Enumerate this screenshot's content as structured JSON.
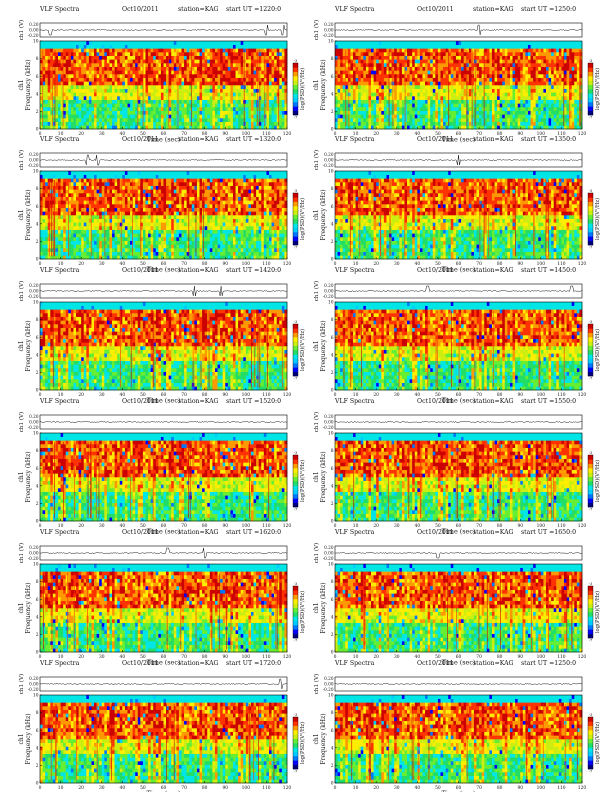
{
  "layout": {
    "columns": 2,
    "rows": 6
  },
  "colors": {
    "background": "#ffffff",
    "axis": "#000000",
    "colormap": [
      "#00007f",
      "#0000ff",
      "#0077ff",
      "#00ccff",
      "#00e6e6",
      "#22dd66",
      "#66ee33",
      "#ccee11",
      "#ffee00",
      "#ff9900",
      "#ff3300",
      "#cc0000"
    ]
  },
  "chart_data": [
    {
      "type": "heatmap",
      "panel": 1,
      "title": "VLF Spectra",
      "date": "Oct10/2011",
      "station": "station=KAG",
      "start": "start  UT  =1220:0",
      "ch_label": "ch1 (V)",
      "ch_ticks": [
        "0.20",
        "0.00",
        "-0.20"
      ],
      "ch_range": [
        -0.2,
        0.2
      ],
      "ylabel": "Frequency (kHz)",
      "channel": "ch1",
      "ylim": [
        0,
        10
      ],
      "y_ticks": [
        "0",
        "2",
        "4",
        "6",
        "8",
        "10"
      ],
      "xlabel": "Time (sec)",
      "xlim": [
        0,
        120
      ],
      "x_ticks": [
        "0",
        "10",
        "20",
        "30",
        "40",
        "50",
        "60",
        "70",
        "80",
        "90",
        "100",
        "110",
        "120"
      ],
      "colorbar_label": "log(PSD)(V²/Hz)",
      "colorbar_range": [
        -7,
        -3
      ],
      "colorbar_ticks": [
        "-3",
        "-7"
      ],
      "strong_emission_band_khz": [
        5,
        9
      ],
      "spikes_sec": [
        5,
        110,
        118
      ]
    },
    {
      "type": "heatmap",
      "panel": 2,
      "title": "VLF Spectra",
      "date": "Oct10/2011",
      "station": "station=KAG",
      "start": "start  UT  =1250:0",
      "ch_label": "ch1 (V)",
      "ch_ticks": [
        "0.20",
        "0.00",
        "-0.20"
      ],
      "ch_range": [
        -0.2,
        0.2
      ],
      "ylabel": "Frequency (kHz)",
      "channel": "ch1",
      "ylim": [
        0,
        10
      ],
      "y_ticks": [
        "0",
        "2",
        "4",
        "6",
        "8",
        "10"
      ],
      "xlabel": "Time (sec)",
      "xlim": [
        0,
        120
      ],
      "x_ticks": [
        "0",
        "10",
        "20",
        "30",
        "40",
        "50",
        "60",
        "70",
        "80",
        "90",
        "100",
        "110",
        "120"
      ],
      "colorbar_label": "log(PSD)(V²/Hz)",
      "colorbar_range": [
        -7,
        -3
      ],
      "colorbar_ticks": [
        "-3",
        "-7"
      ],
      "strong_emission_band_khz": [
        5,
        9
      ],
      "spikes_sec": [
        70
      ]
    },
    {
      "type": "heatmap",
      "panel": 3,
      "title": "VLF Spectra",
      "date": "Oct10/2011",
      "station": "station=KAG",
      "start": "start  UT  =1320:0",
      "ch_label": "ch1 (V)",
      "ch_ticks": [
        "0.20",
        "0.00",
        "-0.20"
      ],
      "ch_range": [
        -0.2,
        0.2
      ],
      "ylabel": "Frequency (kHz)",
      "channel": "ch1",
      "ylim": [
        0,
        10
      ],
      "y_ticks": [
        "0",
        "2",
        "4",
        "6",
        "8",
        "10"
      ],
      "xlabel": "Time (sec)",
      "xlim": [
        0,
        120
      ],
      "x_ticks": [
        "0",
        "10",
        "20",
        "30",
        "40",
        "50",
        "60",
        "70",
        "80",
        "90",
        "100",
        "110",
        "120"
      ],
      "colorbar_label": "log(PSD)(V²/Hz)",
      "colorbar_range": [
        -7,
        -3
      ],
      "colorbar_ticks": [
        "-3",
        "-7"
      ],
      "strong_emission_band_khz": [
        5,
        9
      ],
      "spikes_sec": [
        23,
        28
      ]
    },
    {
      "type": "heatmap",
      "panel": 4,
      "title": "VLF Spectra",
      "date": "Oct10/2011",
      "station": "station=KAG",
      "start": "start  UT  =1350:0",
      "ch_label": "ch1 (V)",
      "ch_ticks": [
        "0.20",
        "0.00",
        "-0.20"
      ],
      "ch_range": [
        -0.2,
        0.2
      ],
      "ylabel": "Frequency (kHz)",
      "channel": "ch1",
      "ylim": [
        0,
        10
      ],
      "y_ticks": [
        "0",
        "2",
        "4",
        "6",
        "8",
        "10"
      ],
      "xlabel": "Time (sec)",
      "xlim": [
        0,
        120
      ],
      "x_ticks": [
        "0",
        "10",
        "20",
        "30",
        "40",
        "50",
        "60",
        "70",
        "80",
        "90",
        "100",
        "110",
        "120"
      ],
      "colorbar_label": "log(PSD)(V²/Hz)",
      "colorbar_range": [
        -7,
        -3
      ],
      "colorbar_ticks": [
        "-3",
        "-7"
      ],
      "strong_emission_band_khz": [
        5,
        9
      ],
      "spikes_sec": [
        60
      ]
    },
    {
      "type": "heatmap",
      "panel": 5,
      "title": "VLF Spectra",
      "date": "Oct10/2011",
      "station": "station=KAG",
      "start": "start  UT  =1420:0",
      "ch_label": "ch1 (V)",
      "ch_ticks": [
        "0.20",
        "0.00",
        "-0.20"
      ],
      "ch_range": [
        -0.2,
        0.2
      ],
      "ylabel": "Frequency (kHz)",
      "channel": "ch1",
      "ylim": [
        0,
        10
      ],
      "y_ticks": [
        "0",
        "2",
        "4",
        "6",
        "8",
        "10"
      ],
      "xlabel": "Time (sec)",
      "xlim": [
        0,
        120
      ],
      "x_ticks": [
        "0",
        "10",
        "20",
        "30",
        "40",
        "50",
        "60",
        "70",
        "80",
        "90",
        "100",
        "110",
        "120"
      ],
      "colorbar_label": "log(PSD)(V²/Hz)",
      "colorbar_range": [
        -7,
        -3
      ],
      "colorbar_ticks": [
        "-3",
        "-7"
      ],
      "strong_emission_band_khz": [
        5,
        9
      ],
      "spikes_sec": [
        75,
        88
      ]
    },
    {
      "type": "heatmap",
      "panel": 6,
      "title": "VLF Spectra",
      "date": "Oct10/2011",
      "station": "station=KAG",
      "start": "start  UT  =1450:0",
      "ch_label": "ch1 (V)",
      "ch_ticks": [
        "0.20",
        "0.00",
        "-0.20"
      ],
      "ch_range": [
        -0.2,
        0.2
      ],
      "ylabel": "Frequency (kHz)",
      "channel": "ch1",
      "ylim": [
        0,
        10
      ],
      "y_ticks": [
        "0",
        "2",
        "4",
        "6",
        "8",
        "10"
      ],
      "xlabel": "Time (sec)",
      "xlim": [
        0,
        120
      ],
      "x_ticks": [
        "0",
        "10",
        "20",
        "30",
        "40",
        "50",
        "60",
        "70",
        "80",
        "90",
        "100",
        "110",
        "120"
      ],
      "colorbar_label": "log(PSD)(V²/Hz)",
      "colorbar_range": [
        -7,
        -3
      ],
      "colorbar_ticks": [
        "-3",
        "-7"
      ],
      "strong_emission_band_khz": [
        5,
        9
      ],
      "spikes_sec": [
        45,
        115
      ]
    },
    {
      "type": "heatmap",
      "panel": 7,
      "title": "VLF Spectra",
      "date": "Oct10/2011",
      "station": "station=KAG",
      "start": "start  UT  =1520:0",
      "ch_label": "ch1 (V)",
      "ch_ticks": [
        "0.20",
        "0.00",
        "-0.20"
      ],
      "ch_range": [
        -0.2,
        0.2
      ],
      "ylabel": "Frequency (kHz)",
      "channel": "ch1",
      "ylim": [
        0,
        10
      ],
      "y_ticks": [
        "0",
        "2",
        "4",
        "6",
        "8",
        "10"
      ],
      "xlabel": "Time (sec)",
      "xlim": [
        0,
        120
      ],
      "x_ticks": [
        "0",
        "10",
        "20",
        "30",
        "40",
        "50",
        "60",
        "70",
        "80",
        "90",
        "100",
        "110",
        "120"
      ],
      "colorbar_label": "log(PSD)(V²/Hz)",
      "colorbar_range": [
        -7,
        -3
      ],
      "colorbar_ticks": [
        "-3",
        "-7"
      ],
      "strong_emission_band_khz": [
        5,
        9
      ],
      "spikes_sec": []
    },
    {
      "type": "heatmap",
      "panel": 8,
      "title": "VLF Spectra",
      "date": "Oct10/2011",
      "station": "station=KAG",
      "start": "start  UT  =1550:0",
      "ch_label": "ch1 (V)",
      "ch_ticks": [
        "0.20",
        "0.00",
        "-0.20"
      ],
      "ch_range": [
        -0.2,
        0.2
      ],
      "ylabel": "Frequency (kHz)",
      "channel": "ch1",
      "ylim": [
        0,
        10
      ],
      "y_ticks": [
        "0",
        "2",
        "4",
        "6",
        "8",
        "10"
      ],
      "xlabel": "Time (sec)",
      "xlim": [
        0,
        120
      ],
      "x_ticks": [
        "0",
        "10",
        "20",
        "30",
        "40",
        "50",
        "60",
        "70",
        "80",
        "90",
        "100",
        "110",
        "120"
      ],
      "colorbar_label": "log(PSD)(V²/Hz)",
      "colorbar_range": [
        -7,
        -3
      ],
      "colorbar_ticks": [
        "-3",
        "-7"
      ],
      "strong_emission_band_khz": [
        5,
        9
      ],
      "spikes_sec": []
    },
    {
      "type": "heatmap",
      "panel": 9,
      "title": "VLF Spectra",
      "date": "Oct10/2011",
      "station": "station=KAG",
      "start": "start  UT  =1620:0",
      "ch_label": "ch1 (V)",
      "ch_ticks": [
        "0.20",
        "0.00",
        "-0.20"
      ],
      "ch_range": [
        -0.2,
        0.2
      ],
      "ylabel": "Frequency (kHz)",
      "channel": "ch1",
      "ylim": [
        0,
        10
      ],
      "y_ticks": [
        "0",
        "2",
        "4",
        "6",
        "8",
        "10"
      ],
      "xlabel": "Time (sec)",
      "xlim": [
        0,
        120
      ],
      "x_ticks": [
        "0",
        "10",
        "20",
        "30",
        "40",
        "50",
        "60",
        "70",
        "80",
        "90",
        "100",
        "110",
        "120"
      ],
      "colorbar_label": "log(PSD)(V²/Hz)",
      "colorbar_range": [
        -7,
        -3
      ],
      "colorbar_ticks": [
        "-3",
        "-7"
      ],
      "strong_emission_band_khz": [
        5,
        9
      ],
      "spikes_sec": [
        62,
        80
      ]
    },
    {
      "type": "heatmap",
      "panel": 10,
      "title": "VLF Spectra",
      "date": "Oct10/2011",
      "station": "station=KAG",
      "start": "start  UT  =1650:0",
      "ch_label": "ch1 (V)",
      "ch_ticks": [
        "0.20",
        "0.00",
        "-0.20"
      ],
      "ch_range": [
        -0.2,
        0.2
      ],
      "ylabel": "Frequency (kHz)",
      "channel": "ch1",
      "ylim": [
        0,
        10
      ],
      "y_ticks": [
        "0",
        "2",
        "4",
        "6",
        "8",
        "10"
      ],
      "xlabel": "Time (sec)",
      "xlim": [
        0,
        120
      ],
      "x_ticks": [
        "0",
        "10",
        "20",
        "30",
        "40",
        "50",
        "60",
        "70",
        "80",
        "90",
        "100",
        "110",
        "120"
      ],
      "colorbar_label": "log(PSD)(V²/Hz)",
      "colorbar_range": [
        -7,
        -3
      ],
      "colorbar_ticks": [
        "-3",
        "-7"
      ],
      "strong_emission_band_khz": [
        5,
        9
      ],
      "spikes_sec": [
        50
      ]
    },
    {
      "type": "heatmap",
      "panel": 11,
      "title": "VLF Spectra",
      "date": "Oct10/2011",
      "station": "station=KAG",
      "start": "start  UT  =1720:0",
      "ch_label": "ch1 (V)",
      "ch_ticks": [
        "0.20",
        "0.00",
        "-0.20"
      ],
      "ch_range": [
        -0.2,
        0.2
      ],
      "ylabel": "Frequency (kHz)",
      "channel": "ch1",
      "ylim": [
        0,
        10
      ],
      "y_ticks": [
        "0",
        "2",
        "4",
        "6",
        "8",
        "10"
      ],
      "xlabel": "Time (sec)",
      "xlim": [
        0,
        120
      ],
      "x_ticks": [
        "0",
        "10",
        "20",
        "30",
        "40",
        "50",
        "60",
        "70",
        "80",
        "90",
        "100",
        "110",
        "120"
      ],
      "colorbar_label": "log(PSD)(V²/Hz)",
      "colorbar_range": [
        -7,
        -3
      ],
      "colorbar_ticks": [
        "-3",
        "-7"
      ],
      "strong_emission_band_khz": [
        5,
        9
      ],
      "spikes_sec": [
        117
      ]
    },
    {
      "type": "heatmap",
      "panel": 12,
      "title": "VLF Spectra",
      "date": "Oct10/2011",
      "station": "station=KAG",
      "start": "start  UT  =1250:0",
      "ch_label": "ch1 (V)",
      "ch_ticks": [
        "0.20",
        "0.00",
        "-0.20"
      ],
      "ch_range": [
        -0.2,
        0.2
      ],
      "ylabel": "Frequency (kHz)",
      "channel": "ch1",
      "ylim": [
        0,
        10
      ],
      "y_ticks": [
        "0",
        "2",
        "4",
        "6",
        "8",
        "10"
      ],
      "xlabel": "Time (sec)",
      "xlim": [
        0,
        120
      ],
      "x_ticks": [
        "0",
        "10",
        "20",
        "30",
        "40",
        "50",
        "60",
        "70",
        "80",
        "90",
        "100",
        "110",
        "120"
      ],
      "colorbar_label": "log(PSD)(V²/Hz)",
      "colorbar_range": [
        -7,
        -3
      ],
      "colorbar_ticks": [
        "-3",
        "-7"
      ],
      "strong_emission_band_khz": [
        5,
        9
      ],
      "spikes_sec": []
    }
  ]
}
